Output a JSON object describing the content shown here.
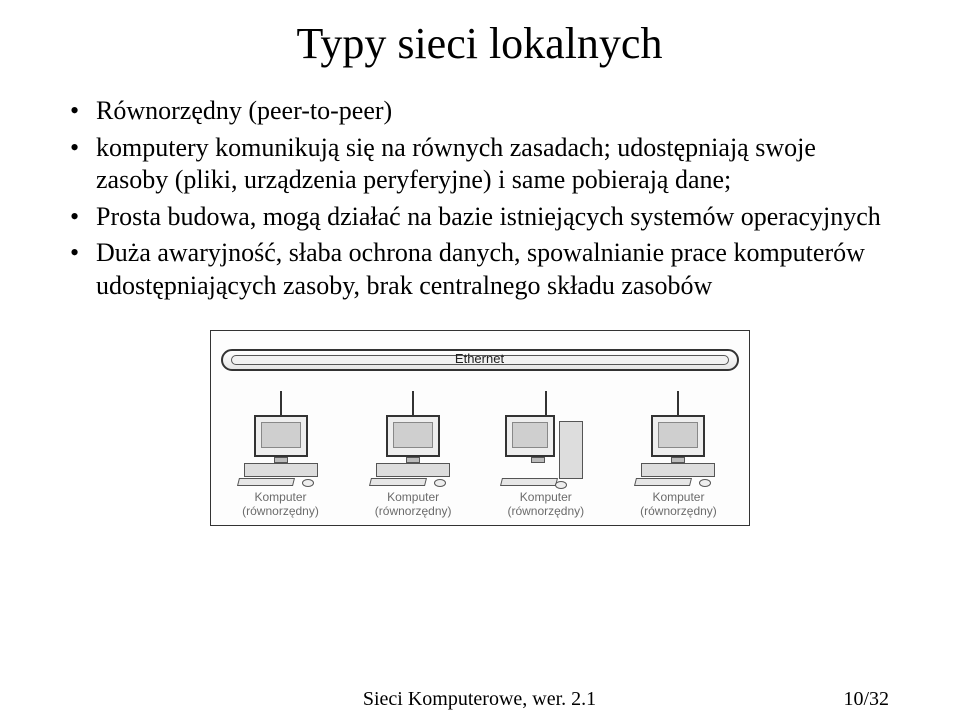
{
  "title": "Typy sieci lokalnych",
  "bullets": {
    "b0": "Równorzędny (peer-to-peer)",
    "b1": "komputery komunikują się na równych zasadach; udostępniają swoje zasoby (pliki, urządzenia peryferyjne) i same pobierają dane;",
    "b2": "Prosta budowa, mogą działać na bazie istniejących systemów operacyjnych",
    "b3": "Duża awaryjność, słaba ochrona danych, spowalnianie prace komputerów udostępniających zasoby, brak centralnego składu zasobów"
  },
  "diagram": {
    "bus_label": "Ethernet",
    "caption_line1": "Komputer",
    "caption_line2": "(równorzędny)"
  },
  "footer": {
    "center": "Sieci Komputerowe, wer. 2.1",
    "right": "10/32"
  }
}
